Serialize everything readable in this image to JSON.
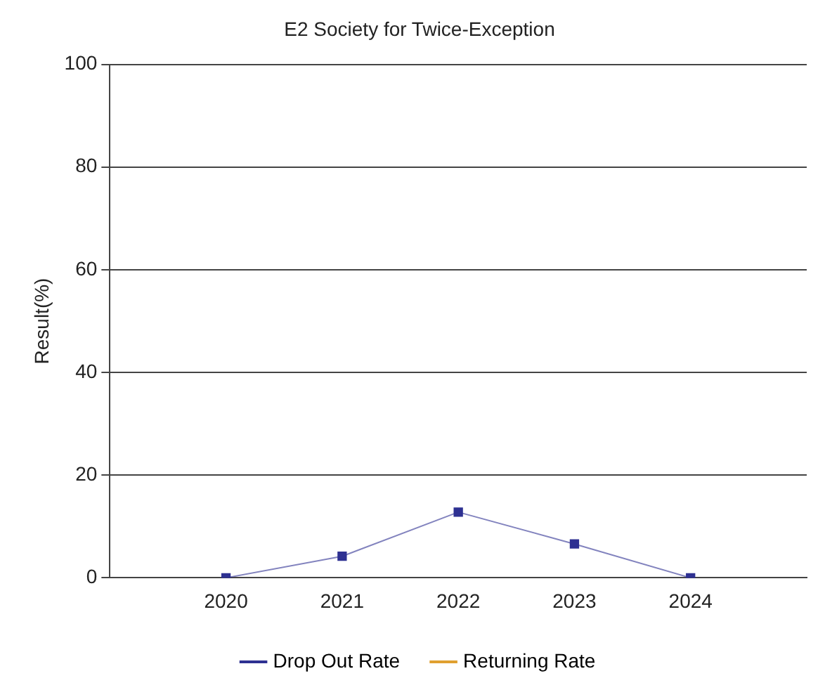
{
  "chart_data": {
    "type": "line",
    "title": "E2 Society for Twice-Exception",
    "ylabel": "Result(%)",
    "categories": [
      null,
      "2020",
      "2021",
      "2022",
      "2023",
      "2024",
      null
    ],
    "series": [
      {
        "name": "Drop Out Rate",
        "color": "#2e3192",
        "values": [
          null,
          0,
          4.2,
          12.8,
          6.6,
          0,
          null
        ]
      },
      {
        "name": "Returning Rate",
        "color": "#e0a030",
        "values": [
          null,
          null,
          null,
          null,
          null,
          null,
          null
        ]
      }
    ],
    "ylim": [
      0,
      100
    ],
    "yticks": [
      0,
      20,
      40,
      60,
      80,
      100
    ],
    "grid": "y",
    "legend": "bottom",
    "marker": "square",
    "line_style": "solid"
  }
}
